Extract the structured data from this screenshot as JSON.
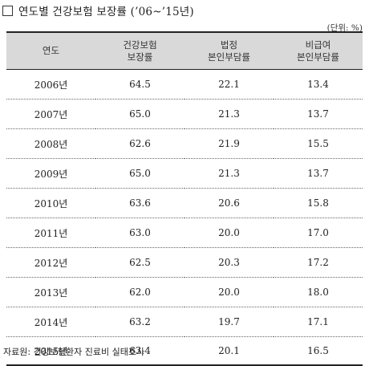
{
  "title": "연도별 건강보험 보장률 (’06~’15년)",
  "unit": "(단위: %)",
  "columns": [
    {
      "line1": "연도",
      "line2": ""
    },
    {
      "line1": "건강보험",
      "line2": "보장률"
    },
    {
      "line1": "법정",
      "line2": "본인부담률"
    },
    {
      "line1": "비급여",
      "line2": "본인부담률"
    }
  ],
  "rows": [
    [
      "2006년",
      "64.5",
      "22.1",
      "13.4"
    ],
    [
      "2007년",
      "65.0",
      "21.3",
      "13.7"
    ],
    [
      "2008년",
      "62.6",
      "21.9",
      "15.5"
    ],
    [
      "2009년",
      "65.0",
      "21.3",
      "13.7"
    ],
    [
      "2010년",
      "63.6",
      "20.6",
      "15.8"
    ],
    [
      "2011년",
      "63.0",
      "20.0",
      "17.0"
    ],
    [
      "2012년",
      "62.5",
      "20.3",
      "17.2"
    ],
    [
      "2013년",
      "62.0",
      "20.0",
      "18.0"
    ],
    [
      "2014년",
      "63.2",
      "19.7",
      "17.1"
    ],
    [
      "2015년",
      "63.4",
      "20.1",
      "16.5"
    ]
  ],
  "source": "자료원: 건강보험환자 진료비 실태조사"
}
